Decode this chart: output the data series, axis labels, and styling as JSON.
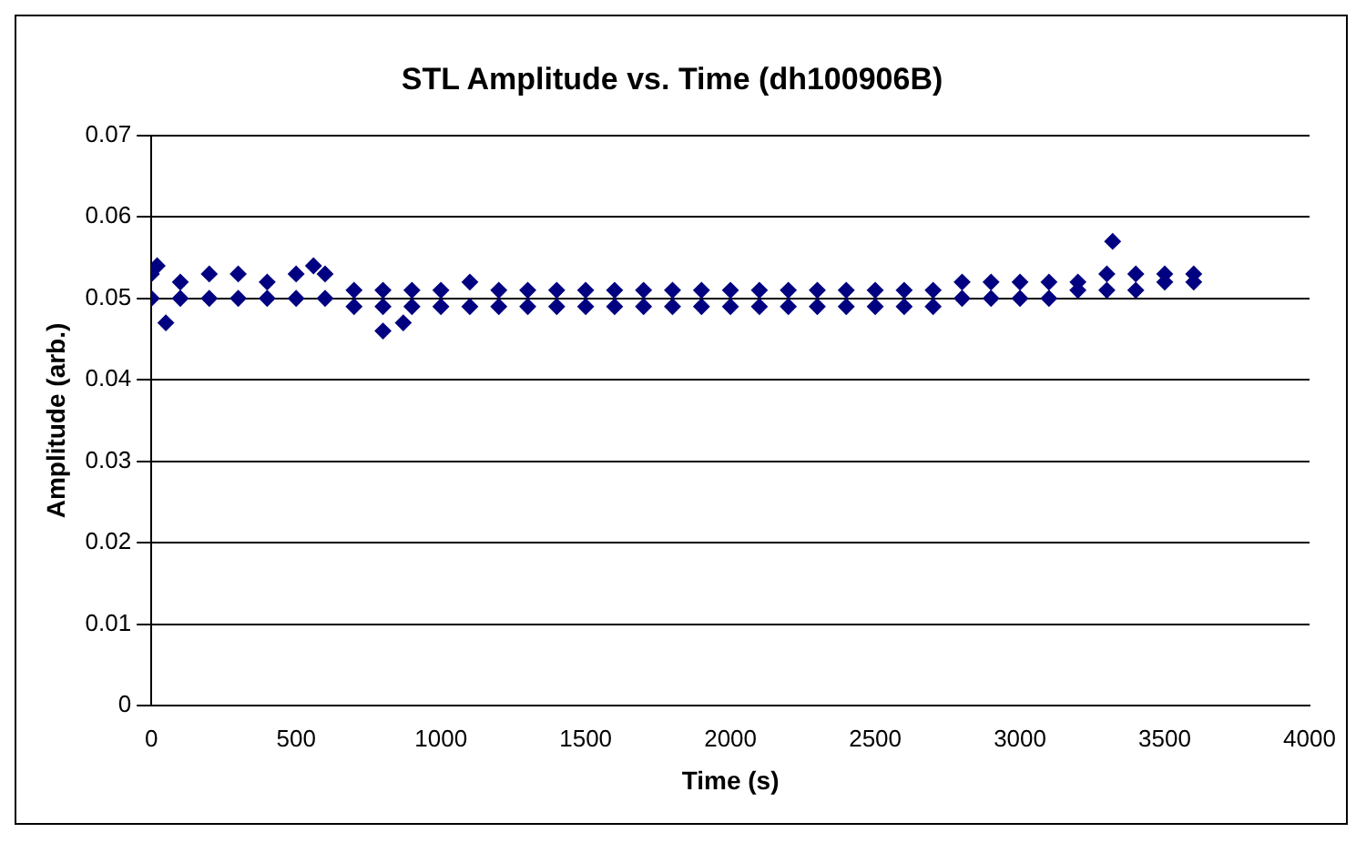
{
  "chart_data": {
    "type": "scatter",
    "title": "STL Amplitude vs. Time (dh100906B)",
    "xlabel": "Time (s)",
    "ylabel": "Amplitude (arb.)",
    "xlim": [
      0,
      4000
    ],
    "xticks": [
      0,
      500,
      1000,
      1500,
      2000,
      2500,
      3000,
      3500,
      4000
    ],
    "ylim": [
      0,
      0.07
    ],
    "yticks": [
      0,
      0.01,
      0.02,
      0.03,
      0.04,
      0.05,
      0.06,
      0.07
    ],
    "grid": "y",
    "legend": false,
    "marker": "diamond",
    "series": [
      {
        "color": "#000080",
        "x": [
          0,
          100,
          200,
          300,
          400,
          500,
          600,
          700,
          800,
          900,
          1000,
          1100,
          1200,
          1300,
          1400,
          1500,
          1600,
          1700,
          1800,
          1900,
          2000,
          2100,
          2200,
          2300,
          2400,
          2500,
          2600,
          2700,
          2800,
          2900,
          3000,
          3100,
          3200,
          3300,
          3400,
          3500,
          3600
        ],
        "values": [
          0.053,
          0.052,
          0.053,
          0.053,
          0.052,
          0.053,
          0.053,
          0.051,
          0.051,
          0.051,
          0.051,
          0.052,
          0.051,
          0.051,
          0.051,
          0.051,
          0.051,
          0.051,
          0.051,
          0.051,
          0.051,
          0.051,
          0.051,
          0.051,
          0.051,
          0.051,
          0.051,
          0.051,
          0.052,
          0.052,
          0.052,
          0.052,
          0.052,
          0.053,
          0.053,
          0.053,
          0.053
        ]
      },
      {
        "color": "#000080",
        "x": [
          0,
          100,
          200,
          300,
          400,
          500,
          600,
          700,
          800,
          900,
          1000,
          1100,
          1200,
          1300,
          1400,
          1500,
          1600,
          1700,
          1800,
          1900,
          2000,
          2100,
          2200,
          2300,
          2400,
          2500,
          2600,
          2700,
          2800,
          2900,
          3000,
          3100,
          3200,
          3300,
          3400,
          3500,
          3600
        ],
        "values": [
          0.05,
          0.05,
          0.05,
          0.05,
          0.05,
          0.05,
          0.05,
          0.049,
          0.049,
          0.049,
          0.049,
          0.049,
          0.049,
          0.049,
          0.049,
          0.049,
          0.049,
          0.049,
          0.049,
          0.049,
          0.049,
          0.049,
          0.049,
          0.049,
          0.049,
          0.049,
          0.049,
          0.049,
          0.05,
          0.05,
          0.05,
          0.05,
          0.051,
          0.051,
          0.051,
          0.052,
          0.052
        ]
      },
      {
        "color": "#000080",
        "x": [
          20,
          50,
          560,
          800,
          870,
          3320
        ],
        "values": [
          0.054,
          0.047,
          0.054,
          0.046,
          0.047,
          0.057
        ]
      }
    ]
  }
}
